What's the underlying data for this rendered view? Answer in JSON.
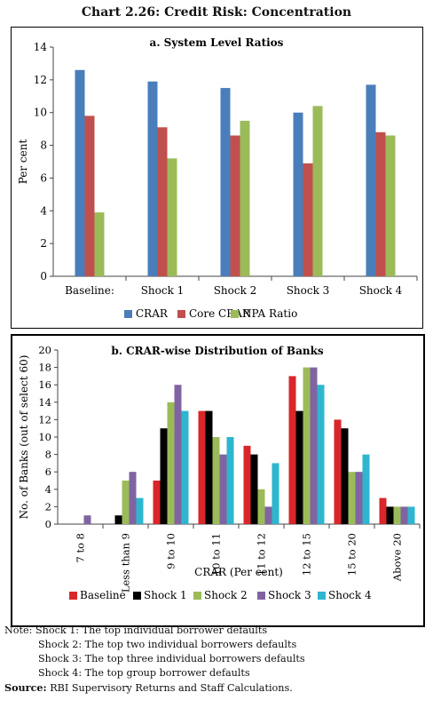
{
  "title": "Chart 2.26: Credit Risk: Concentration",
  "chart_data": [
    {
      "type": "bar",
      "title": "a. System Level Ratios",
      "xlabel": "",
      "ylabel": "Per cent",
      "ylim": [
        0,
        14
      ],
      "yticks": [
        0,
        2,
        4,
        6,
        8,
        10,
        12,
        14
      ],
      "grid": false,
      "legend_position": "bottom",
      "categories": [
        "Baseline:",
        "Shock 1",
        "Shock 2",
        "Shock 3",
        "Shock 4"
      ],
      "series": [
        {
          "name": "CRAR",
          "color": "#4a7ebb",
          "values": [
            12.6,
            11.9,
            11.5,
            10.0,
            11.7
          ]
        },
        {
          "name": "Core CRAR",
          "color": "#c0504d",
          "values": [
            9.8,
            9.1,
            8.6,
            6.9,
            8.8
          ]
        },
        {
          "name": "NPA Ratio",
          "color": "#9bbb59",
          "values": [
            3.9,
            7.2,
            9.5,
            10.4,
            8.6
          ]
        }
      ]
    },
    {
      "type": "bar",
      "title": "b. CRAR-wise Distribution of Banks",
      "xlabel": "CRAR (Per cent)",
      "ylabel": "No. of Banks (out of select 60)",
      "ylim": [
        0,
        20
      ],
      "yticks": [
        0,
        2,
        4,
        6,
        8,
        10,
        12,
        14,
        16,
        18,
        20
      ],
      "grid": false,
      "legend_position": "bottom",
      "categories": [
        "7 to 8",
        "Less than 9",
        "9 to 10",
        "10 to 11",
        "11 to 12",
        "12 to 15",
        "15 to 20",
        "Above 20"
      ],
      "series": [
        {
          "name": "Baseline",
          "color": "#d9262a",
          "values": [
            0,
            0,
            5,
            13,
            9,
            17,
            12,
            3
          ]
        },
        {
          "name": "Shock 1",
          "color": "#000000",
          "values": [
            0,
            1,
            11,
            13,
            8,
            13,
            11,
            2
          ]
        },
        {
          "name": "Shock 2",
          "color": "#9bbb59",
          "values": [
            0,
            5,
            14,
            10,
            4,
            18,
            6,
            2
          ]
        },
        {
          "name": "Shock 3",
          "color": "#8064a2",
          "values": [
            1,
            6,
            16,
            8,
            2,
            18,
            6,
            2
          ]
        },
        {
          "name": "Shock 4",
          "color": "#2eb6cf",
          "values": [
            0,
            3,
            13,
            10,
            7,
            16,
            8,
            2
          ]
        }
      ]
    }
  ],
  "notes": {
    "label": "Note:",
    "lines": [
      "Shock 1:  The top individual borrower defaults",
      "Shock 2:  The top two individual borrowers defaults",
      "Shock 3:  The top three individual borrowers defaults",
      "Shock 4:  The top group borrower defaults"
    ],
    "source_label": "Source:",
    "source_text": "RBI Supervisory Returns and Staff Calculations."
  }
}
